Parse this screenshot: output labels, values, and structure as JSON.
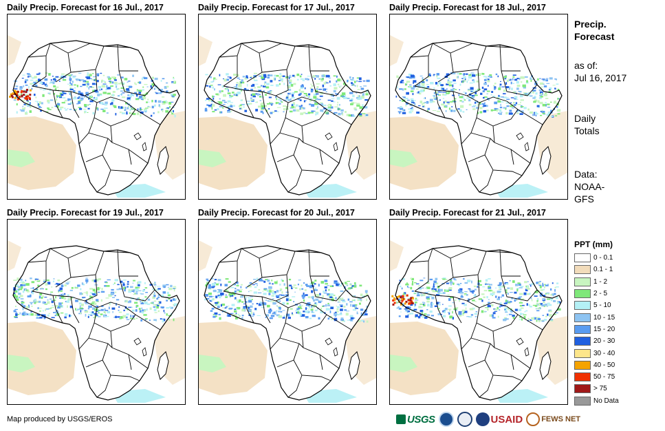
{
  "panels": [
    {
      "title": "Daily Precip. Forecast for 16 Jul., 2017"
    },
    {
      "title": "Daily Precip. Forecast for 17 Jul., 2017"
    },
    {
      "title": "Daily Precip. Forecast for 18 Jul., 2017"
    },
    {
      "title": "Daily Precip. Forecast for 19 Jul., 2017"
    },
    {
      "title": "Daily Precip. Forecast for 20 Jul., 2017"
    },
    {
      "title": "Daily Precip. Forecast for 21 Jul., 2017"
    }
  ],
  "side": {
    "title_line1": "Precip.",
    "title_line2": "Forecast",
    "asof_label": "as of:",
    "asof_date": "Jul 16, 2017",
    "totals_line1": "Daily",
    "totals_line2": "Totals",
    "data_label": "Data:",
    "data_line1": "NOAA-",
    "data_line2": "GFS"
  },
  "legend": {
    "title": "PPT (mm)",
    "items": [
      {
        "label": "0 - 0.1",
        "color": "#ffffff"
      },
      {
        "label": "0.1 - 1",
        "color": "#f2dcbb"
      },
      {
        "label": "1 - 2",
        "color": "#c8f5c0"
      },
      {
        "label": "2 - 5",
        "color": "#7fe87a"
      },
      {
        "label": "5 - 10",
        "color": "#b4f0f5"
      },
      {
        "label": "10 - 15",
        "color": "#8ec4f2"
      },
      {
        "label": "15 - 20",
        "color": "#5a9cf0"
      },
      {
        "label": "20 - 30",
        "color": "#2060e0"
      },
      {
        "label": "30 - 40",
        "color": "#fde68a"
      },
      {
        "label": "40 - 50",
        "color": "#f5a300"
      },
      {
        "label": "50 - 75",
        "color": "#f03000"
      },
      {
        "label": "> 75",
        "color": "#a01818"
      },
      {
        "label": "No Data",
        "color": "#999999"
      }
    ]
  },
  "credit": "Map produced by USGS/EROS",
  "logos": {
    "usgs": "USGS",
    "usaid": "USAID",
    "fews": "FEWS NET"
  }
}
